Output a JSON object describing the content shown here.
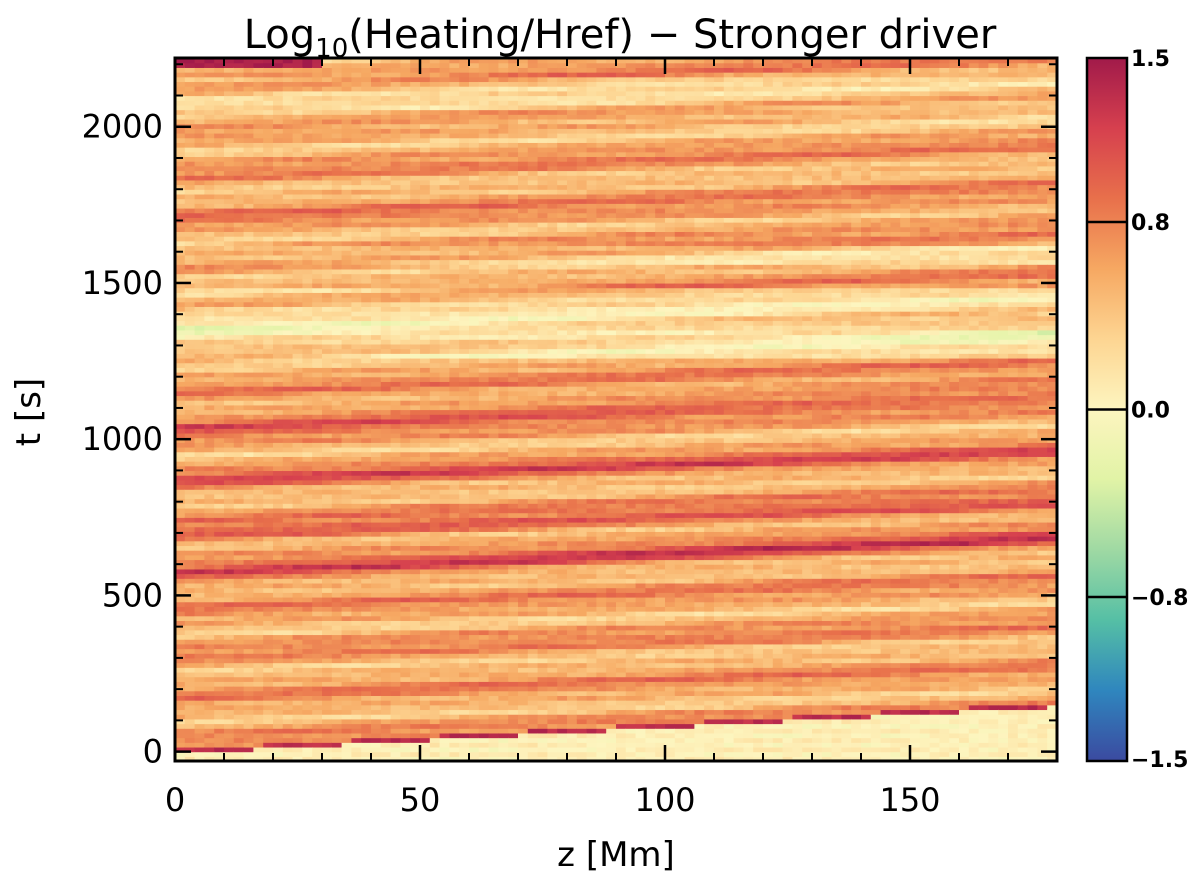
{
  "chart_data": {
    "type": "heatmap",
    "title": {
      "prefix": "Log",
      "subscript": "10",
      "suffix": "(Heating/Href) − Stronger driver"
    },
    "xlabel": "z [Mm]",
    "ylabel": "t [s]",
    "xlim": [
      0,
      180
    ],
    "ylim": [
      -30,
      2220
    ],
    "x_ticks": [
      "0",
      "50",
      "100",
      "150"
    ],
    "y_ticks": [
      "0",
      "500",
      "1000",
      "1500",
      "2000"
    ],
    "colorbar": {
      "range": [
        -1.5,
        1.5
      ],
      "tick_labels": [
        "1.5",
        "0.8",
        "0.0",
        "−0.8",
        "−1.5"
      ],
      "tick_values": [
        1.5,
        0.8,
        0.0,
        -0.8,
        -1.5
      ],
      "colormap": [
        "#3b4aa0",
        "#2f86be",
        "#55bfa5",
        "#9fd9a3",
        "#e1f3a6",
        "#fdf5bf",
        "#fdd592",
        "#f6a862",
        "#e8704b",
        "#d6404e",
        "#a11a4a"
      ]
    },
    "summary": {
      "description": "Log10 heating rate over position z and time t; values mostly between 0 and 1.2, with oblique bands drifting to later t as z increases",
      "front": {
        "z": [
          0,
          180
        ],
        "t": [
          0,
          150
        ]
      },
      "bands": [
        {
          "t0": 1045,
          "slope": 0.72,
          "value": 1.15
        },
        {
          "t0": 560,
          "slope": 0.72,
          "value": 1.15
        },
        {
          "t0": 690,
          "slope": 0.55,
          "value": 1.1
        },
        {
          "t0": 870,
          "slope": 0.5,
          "value": 1.0
        },
        {
          "t0": 1340,
          "slope": 0.0,
          "value": 0.2
        },
        {
          "t0": 1700,
          "slope": 0.2,
          "value": 0.75
        },
        {
          "t0": 2010,
          "slope": 0.2,
          "value": 0.35
        }
      ]
    }
  }
}
